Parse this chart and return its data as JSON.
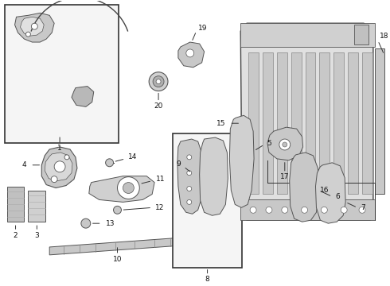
{
  "bg_color": "#ffffff",
  "line_color": "#333333",
  "part_fill": "#cccccc",
  "part_fill2": "#dddddd",
  "part_edge": "#555555"
}
